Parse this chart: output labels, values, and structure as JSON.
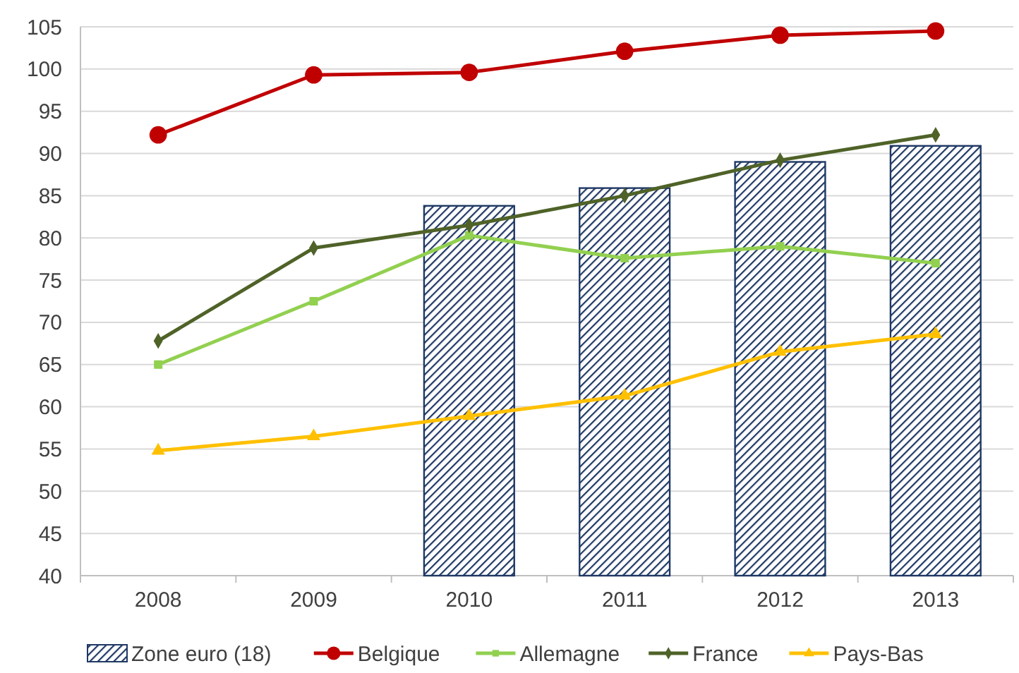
{
  "chart_data": {
    "type": "line",
    "categories": [
      "2008",
      "2009",
      "2010",
      "2011",
      "2012",
      "2013"
    ],
    "series": [
      {
        "name": "Zone euro (18)",
        "type": "bar",
        "color": "#1f3864",
        "values": [
          40,
          40,
          83.8,
          85.9,
          89.0,
          90.9
        ]
      },
      {
        "name": "Belgique",
        "color": "#c00000",
        "marker": "circle",
        "values": [
          92.2,
          99.3,
          99.6,
          102.1,
          104.0,
          104.5
        ]
      },
      {
        "name": "Allemagne",
        "color": "#92d050",
        "marker": "square",
        "values": [
          65.0,
          72.5,
          80.3,
          77.6,
          79.0,
          77.0
        ]
      },
      {
        "name": "France",
        "color": "#4f6228",
        "marker": "diamond",
        "values": [
          67.8,
          78.8,
          81.5,
          85.0,
          89.2,
          92.2
        ]
      },
      {
        "name": "Pays-Bas",
        "color": "#ffc000",
        "marker": "triangle",
        "values": [
          54.8,
          56.5,
          58.9,
          61.3,
          66.5,
          68.6
        ]
      }
    ],
    "ylim": [
      40,
      105
    ],
    "yticks": [
      40,
      45,
      50,
      55,
      60,
      65,
      70,
      75,
      80,
      85,
      90,
      95,
      100,
      105
    ],
    "grid": "y",
    "legend": "bottom"
  }
}
